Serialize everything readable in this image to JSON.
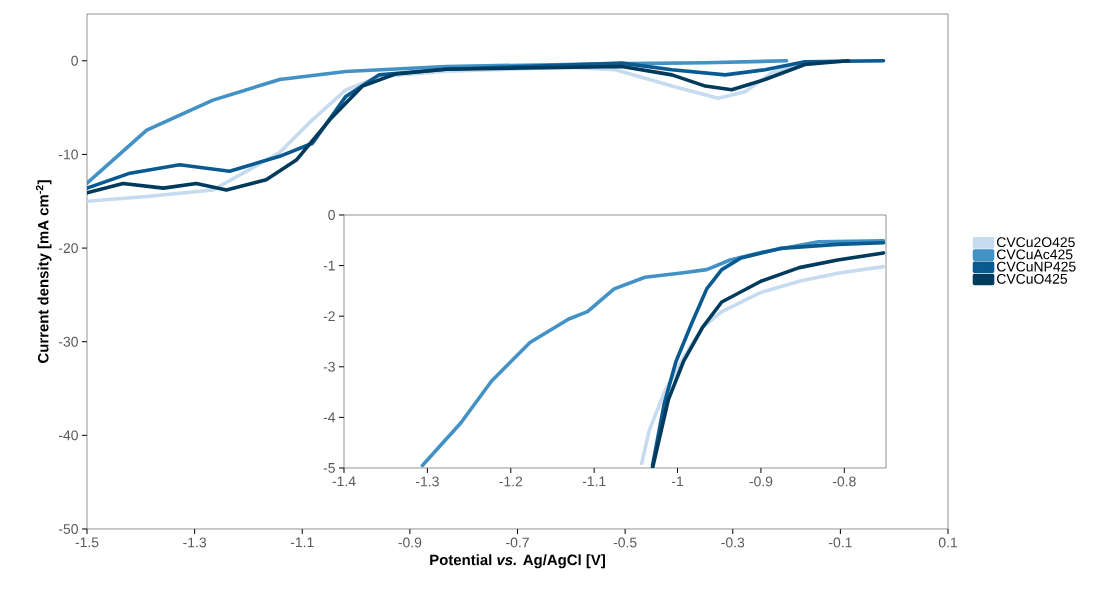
{
  "chart_data": [
    {
      "type": "line",
      "xlabel": "Potential *vs.* Ag/AgCl [V]",
      "ylabel": "Current density [mA cm$^{-2}$]",
      "xlim": [
        -1.5,
        0.1
      ],
      "ylim": [
        -50,
        5
      ],
      "xticks": [
        -1.5,
        -1.3,
        -1.1,
        -0.9,
        -0.7,
        -0.5,
        -0.3,
        -0.1,
        0.1
      ],
      "yticks": [
        -50,
        -40,
        -30,
        -20,
        -10,
        0
      ],
      "legend": "right",
      "series": [
        {
          "name": "CVCu2O425",
          "color": "#c6dbef",
          "x": [
            -1.5,
            -1.389,
            -1.266,
            -1.142,
            -1.081,
            -1.019,
            -0.957,
            -0.833,
            -0.6,
            -0.518,
            -0.413,
            -0.327,
            -0.277,
            -0.228,
            -0.166,
            -0.1,
            -0.02
          ],
          "values": [
            -15.0,
            -14.5,
            -13.8,
            -9.8,
            -6.3,
            -3.1,
            -1.7,
            -1.1,
            -0.7,
            -0.96,
            -2.7,
            -4.0,
            -3.3,
            -1.3,
            -0.25,
            0,
            0
          ]
        },
        {
          "name": "CVCuAc425",
          "color": "#4292c6",
          "x": [
            -1.5,
            -1.389,
            -1.266,
            -1.142,
            -1.019,
            -0.833,
            -0.5,
            -0.35,
            -0.2
          ],
          "values": [
            -13.07,
            -7.4,
            -4.2,
            -2.0,
            -1.14,
            -0.6,
            -0.3,
            -0.2,
            0
          ]
        },
        {
          "name": "CVCuNP425",
          "color": "#0a5a92",
          "x": [
            -1.5,
            -1.42,
            -1.328,
            -1.235,
            -1.142,
            -1.081,
            -1.019,
            -0.957,
            -0.833,
            -0.506,
            -0.413,
            -0.314,
            -0.24,
            -0.166,
            -0.02
          ],
          "values": [
            -13.6,
            -12.0,
            -11.1,
            -11.8,
            -10.2,
            -8.8,
            -3.8,
            -1.5,
            -0.9,
            -0.25,
            -0.96,
            -1.5,
            -0.96,
            -0.1,
            0
          ]
        },
        {
          "name": "CVCuO425",
          "color": "#003a5c",
          "x": [
            -1.5,
            -1.433,
            -1.358,
            -1.297,
            -1.241,
            -1.167,
            -1.111,
            -1.049,
            -0.988,
            -0.926,
            -0.833,
            -0.506,
            -0.413,
            -0.351,
            -0.302,
            -0.24,
            -0.166,
            -0.085
          ],
          "values": [
            -14.1,
            -13.1,
            -13.6,
            -13.1,
            -13.8,
            -12.7,
            -10.6,
            -6.3,
            -2.7,
            -1.4,
            -0.9,
            -0.6,
            -1.5,
            -2.7,
            -3.1,
            -2.0,
            -0.4,
            0
          ]
        }
      ]
    },
    {
      "type": "line",
      "xlim": [
        -1.4,
        -0.75
      ],
      "ylim": [
        -5,
        0
      ],
      "xticks": [
        -1.4,
        -1.3,
        -1.2,
        -1.1,
        -1,
        -0.9,
        -0.8
      ],
      "yticks": [
        -5,
        -4,
        -3,
        -2,
        -1,
        0
      ],
      "series": [
        {
          "color": "#c6dbef",
          "x": [
            -1.043,
            -1.034,
            -1.016,
            -0.993,
            -0.97,
            -0.947,
            -0.9,
            -0.854,
            -0.808,
            -0.753
          ],
          "values": [
            -4.91,
            -4.26,
            -3.51,
            -2.82,
            -2.22,
            -1.91,
            -1.53,
            -1.31,
            -1.15,
            -1.02
          ]
        },
        {
          "color": "#4292c6",
          "x": [
            -1.306,
            -1.26,
            -1.223,
            -1.177,
            -1.131,
            -1.108,
            -1.076,
            -1.039,
            -0.993,
            -0.965,
            -0.937,
            -0.9,
            -0.831,
            -0.753
          ],
          "values": [
            -4.95,
            -4.11,
            -3.28,
            -2.52,
            -2.06,
            -1.91,
            -1.46,
            -1.23,
            -1.14,
            -1.08,
            -0.89,
            -0.74,
            -0.53,
            -0.51
          ]
        },
        {
          "color": "#0a5a92",
          "x": [
            -1.03,
            -1.016,
            -1.002,
            -0.983,
            -0.965,
            -0.947,
            -0.924,
            -0.877,
            -0.808,
            -0.753
          ],
          "values": [
            -4.95,
            -3.73,
            -2.9,
            -2.14,
            -1.46,
            -1.08,
            -0.85,
            -0.66,
            -0.58,
            -0.55
          ]
        },
        {
          "color": "#003a5c",
          "x": [
            -1.03,
            -1.011,
            -0.993,
            -0.97,
            -0.947,
            -0.9,
            -0.854,
            -0.808,
            -0.753
          ],
          "values": [
            -5.0,
            -3.65,
            -2.9,
            -2.22,
            -1.72,
            -1.31,
            -1.04,
            -0.89,
            -0.75
          ]
        }
      ]
    }
  ]
}
